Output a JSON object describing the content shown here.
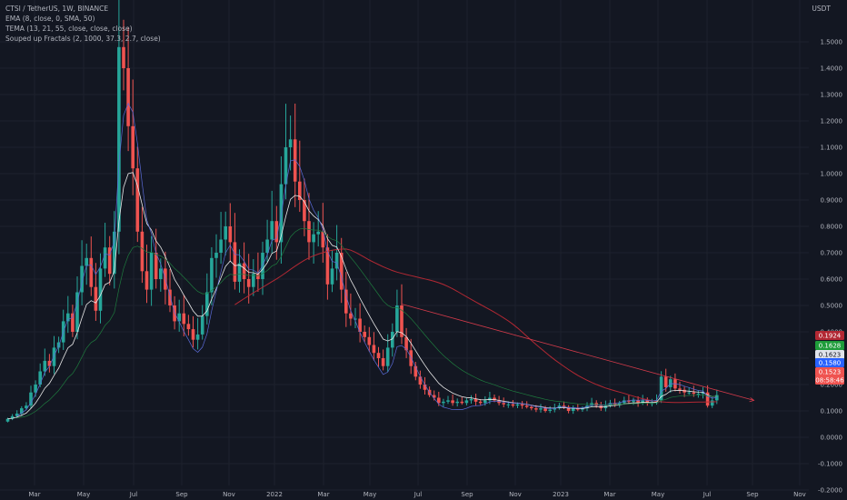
{
  "legend": {
    "symbol": "CTSI / TetherUS, 1W, BINANCE",
    "ema": "EMA (8, close, 0, SMA, 50)",
    "tema": "TEMA (13, 21, 55, close, close, close)",
    "fractals": "Souped up Fractals (2, 1000, 37.3, 2.7, close)"
  },
  "currency": "USDT",
  "colors": {
    "up": "#26a69a",
    "down": "#ef5350",
    "ema_ma": "#b22833",
    "ema_line": "#e8e8e8",
    "tema_fast": "#5b6bd8",
    "tema_slow": "#1e7a3e",
    "trendline": "#d23a4a"
  },
  "chart_data": {
    "type": "candlestick",
    "x_tick_labels": [
      "Mar",
      "May",
      "Jul",
      "Sep",
      "Nov",
      "2022",
      "Mar",
      "May",
      "Jul",
      "Sep",
      "Nov",
      "2023",
      "Mar",
      "May",
      "Jul",
      "Sep",
      "Nov"
    ],
    "y_ticks": [
      1.5,
      1.4,
      1.3,
      1.2,
      1.1,
      1.0,
      0.9,
      0.8,
      0.7,
      0.6,
      0.5,
      0.4,
      0.3,
      0.2,
      0.1,
      0.0,
      -0.1,
      -0.2
    ],
    "y_tick_labels": [
      "1.5000",
      "1.4000",
      "1.3000",
      "1.2000",
      "1.1000",
      "1.0000",
      "0.9000",
      "0.8000",
      "0.7000",
      "0.6000",
      "0.5000",
      "0.4000",
      "0.3000",
      "0.2000",
      "0.1000",
      "0.0000",
      "-0.1000",
      "-0.2000"
    ],
    "ylim": [
      -0.25,
      1.54
    ],
    "closes": [
      0.07,
      0.08,
      0.09,
      0.11,
      0.12,
      0.17,
      0.2,
      0.25,
      0.29,
      0.27,
      0.34,
      0.36,
      0.44,
      0.47,
      0.4,
      0.55,
      0.65,
      0.68,
      0.57,
      0.48,
      0.64,
      0.72,
      0.62,
      0.78,
      1.48,
      1.4,
      1.18,
      1.02,
      0.78,
      0.63,
      0.56,
      0.7,
      0.6,
      0.64,
      0.56,
      0.5,
      0.44,
      0.47,
      0.43,
      0.41,
      0.37,
      0.39,
      0.46,
      0.55,
      0.68,
      0.7,
      0.75,
      0.8,
      0.74,
      0.59,
      0.66,
      0.6,
      0.57,
      0.62,
      0.6,
      0.7,
      0.75,
      0.82,
      0.74,
      0.96,
      1.1,
      1.13,
      0.97,
      0.9,
      0.82,
      0.74,
      0.77,
      0.78,
      0.72,
      0.58,
      0.64,
      0.7,
      0.56,
      0.47,
      0.45,
      0.45,
      0.4,
      0.38,
      0.35,
      0.32,
      0.3,
      0.27,
      0.34,
      0.4,
      0.5,
      0.38,
      0.33,
      0.27,
      0.23,
      0.2,
      0.18,
      0.16,
      0.15,
      0.13,
      0.135,
      0.14,
      0.13,
      0.135,
      0.13,
      0.14,
      0.145,
      0.135,
      0.13,
      0.14,
      0.15,
      0.14,
      0.13,
      0.125,
      0.125,
      0.12,
      0.125,
      0.12,
      0.115,
      0.11,
      0.105,
      0.11,
      0.1,
      0.105,
      0.11,
      0.12,
      0.115,
      0.1,
      0.11,
      0.105,
      0.11,
      0.12,
      0.13,
      0.12,
      0.11,
      0.12,
      0.13,
      0.125,
      0.13,
      0.14,
      0.135,
      0.14,
      0.13,
      0.14,
      0.13,
      0.13,
      0.14,
      0.23,
      0.19,
      0.22,
      0.185,
      0.18,
      0.17,
      0.17,
      0.165,
      0.165,
      0.17,
      0.12,
      0.14,
      0.16
    ],
    "x_start_date": "2021-01-04",
    "x_interval": "1W",
    "price_labels": [
      {
        "label": "0.1924",
        "color": "#b22833"
      },
      {
        "label": "0.1628",
        "color": "#1e9c3a"
      },
      {
        "label": "0.1623",
        "color": "#e0e3eb"
      },
      {
        "label": "0.1580",
        "color": "#2962ff"
      },
      {
        "label": "0.1523",
        "color": "#ef5350"
      },
      {
        "label": "08:58:46",
        "color": "#ef5350"
      }
    ],
    "price_label_values": [
      0.1924,
      0.1628,
      0.1623,
      0.158,
      0.1523
    ],
    "trendline": {
      "from": [
        85,
        0.505
      ],
      "to": [
        161,
        0.14
      ]
    },
    "series": [
      {
        "name": "EMA"
      },
      {
        "name": "TEMA"
      }
    ]
  }
}
